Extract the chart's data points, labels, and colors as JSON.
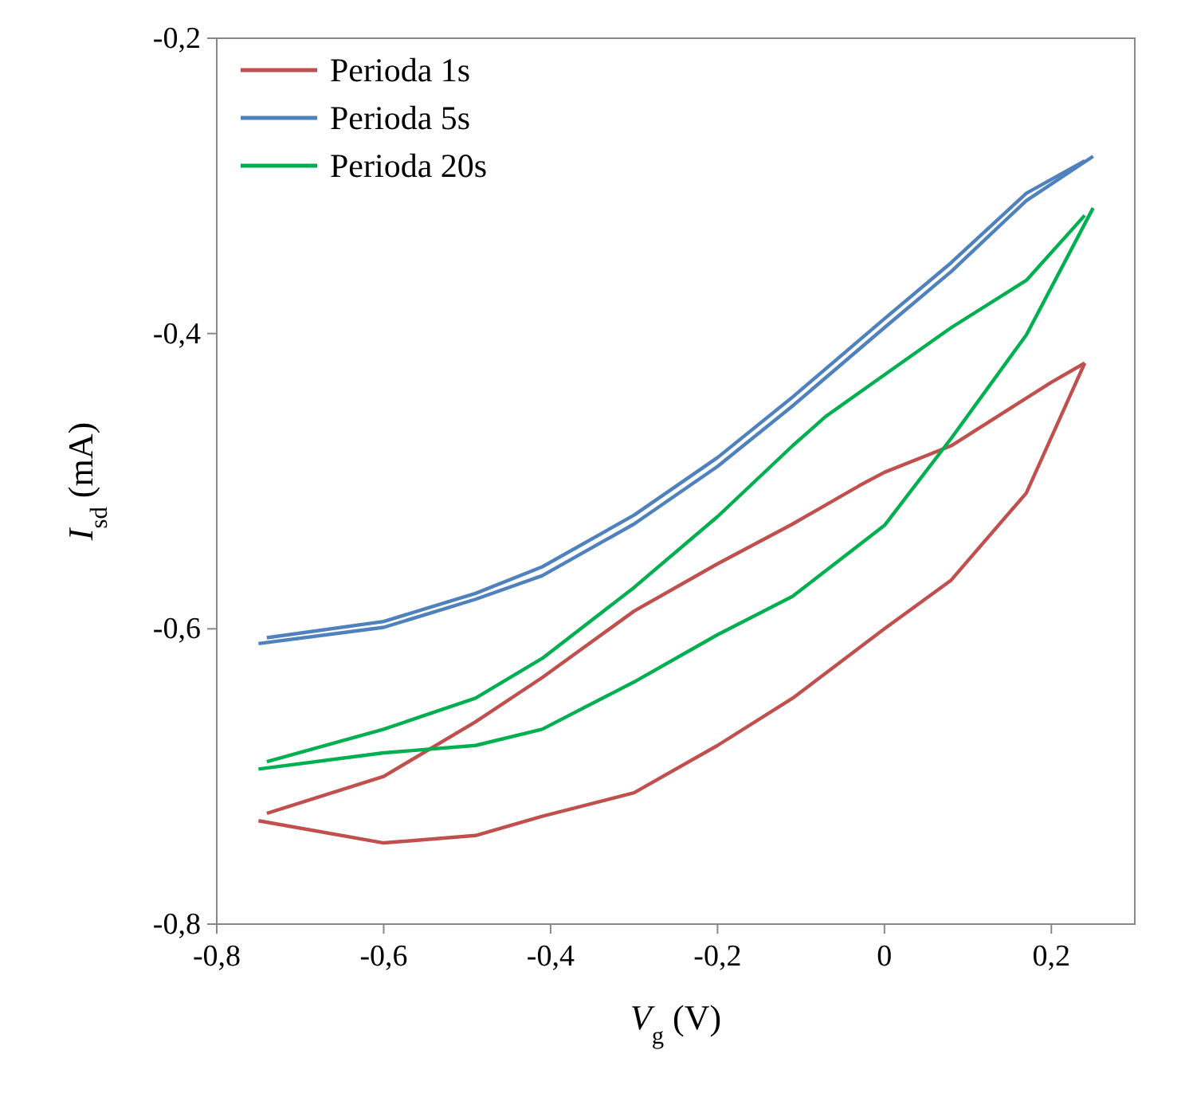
{
  "chart_data": {
    "type": "line",
    "xlabel": "V$_{g}$ (V)",
    "ylabel": "I$_{sd}$ (mA)",
    "xlim": [
      -0.8,
      0.3
    ],
    "ylim": [
      -0.8,
      -0.2
    ],
    "xticks": [
      {
        "value": -0.8,
        "label": "-0,8"
      },
      {
        "value": -0.6,
        "label": "-0,6"
      },
      {
        "value": -0.4,
        "label": "-0,4"
      },
      {
        "value": -0.2,
        "label": "-0,2"
      },
      {
        "value": 0,
        "label": "0"
      },
      {
        "value": 0.2,
        "label": "0,2"
      }
    ],
    "yticks": [
      {
        "value": -0.8,
        "label": "-0,8"
      },
      {
        "value": -0.6,
        "label": "-0,6"
      },
      {
        "value": -0.4,
        "label": "-0,4"
      },
      {
        "value": -0.2,
        "label": "-0,2"
      }
    ],
    "grid": false,
    "legend": "top left",
    "marker": "none",
    "line_style": "solid",
    "series": [
      {
        "name": "Perioda 1s",
        "color": "#c0504d",
        "x": [
          -0.75,
          -0.6,
          -0.49,
          -0.41,
          -0.3,
          -0.2,
          -0.11,
          0,
          0.08,
          0.17,
          0.24
        ],
        "values": [
          -0.73,
          -0.745,
          -0.74,
          -0.727,
          -0.711,
          -0.679,
          -0.647,
          -0.6,
          -0.567,
          -0.508,
          -0.42
        ]
      },
      {
        "color": "#c0504d",
        "x": [
          -0.74,
          -0.6,
          -0.49,
          -0.41,
          -0.3,
          -0.2,
          -0.11,
          -0.03,
          0,
          0.08,
          0.2,
          0.24
        ],
        "values": [
          -0.725,
          -0.7,
          -0.663,
          -0.633,
          -0.588,
          -0.556,
          -0.529,
          -0.503,
          -0.494,
          -0.476,
          -0.433,
          -0.42
        ]
      },
      {
        "name": "Perioda 5s",
        "color": "#4f81bd",
        "x": [
          -0.75,
          -0.6,
          -0.49,
          -0.41,
          -0.3,
          -0.2,
          -0.11,
          0,
          0.08,
          0.17,
          0.25
        ],
        "values": [
          -0.61,
          -0.599,
          -0.58,
          -0.564,
          -0.529,
          -0.49,
          -0.449,
          -0.396,
          -0.358,
          -0.31,
          -0.28
        ]
      },
      {
        "color": "#4f81bd",
        "x": [
          -0.74,
          -0.6,
          -0.49,
          -0.41,
          -0.3,
          -0.2,
          -0.11,
          0,
          0.08,
          0.17,
          0.24
        ],
        "values": [
          -0.606,
          -0.595,
          -0.576,
          -0.558,
          -0.523,
          -0.484,
          -0.443,
          -0.39,
          -0.352,
          -0.305,
          -0.283
        ]
      },
      {
        "name": "Perioda 20s",
        "color": "#00b050",
        "x": [
          -0.75,
          -0.6,
          -0.49,
          -0.41,
          -0.3,
          -0.2,
          -0.11,
          0,
          0.08,
          0.17,
          0.25
        ],
        "values": [
          -0.695,
          -0.684,
          -0.679,
          -0.668,
          -0.636,
          -0.604,
          -0.578,
          -0.53,
          -0.471,
          -0.401,
          -0.315
        ]
      },
      {
        "color": "#00b050",
        "x": [
          -0.74,
          -0.6,
          -0.49,
          -0.41,
          -0.3,
          -0.2,
          -0.11,
          -0.07,
          0,
          0.08,
          0.17,
          0.24
        ],
        "values": [
          -0.69,
          -0.668,
          -0.647,
          -0.62,
          -0.572,
          -0.524,
          -0.476,
          -0.456,
          -0.428,
          -0.396,
          -0.364,
          -0.32
        ]
      }
    ]
  }
}
